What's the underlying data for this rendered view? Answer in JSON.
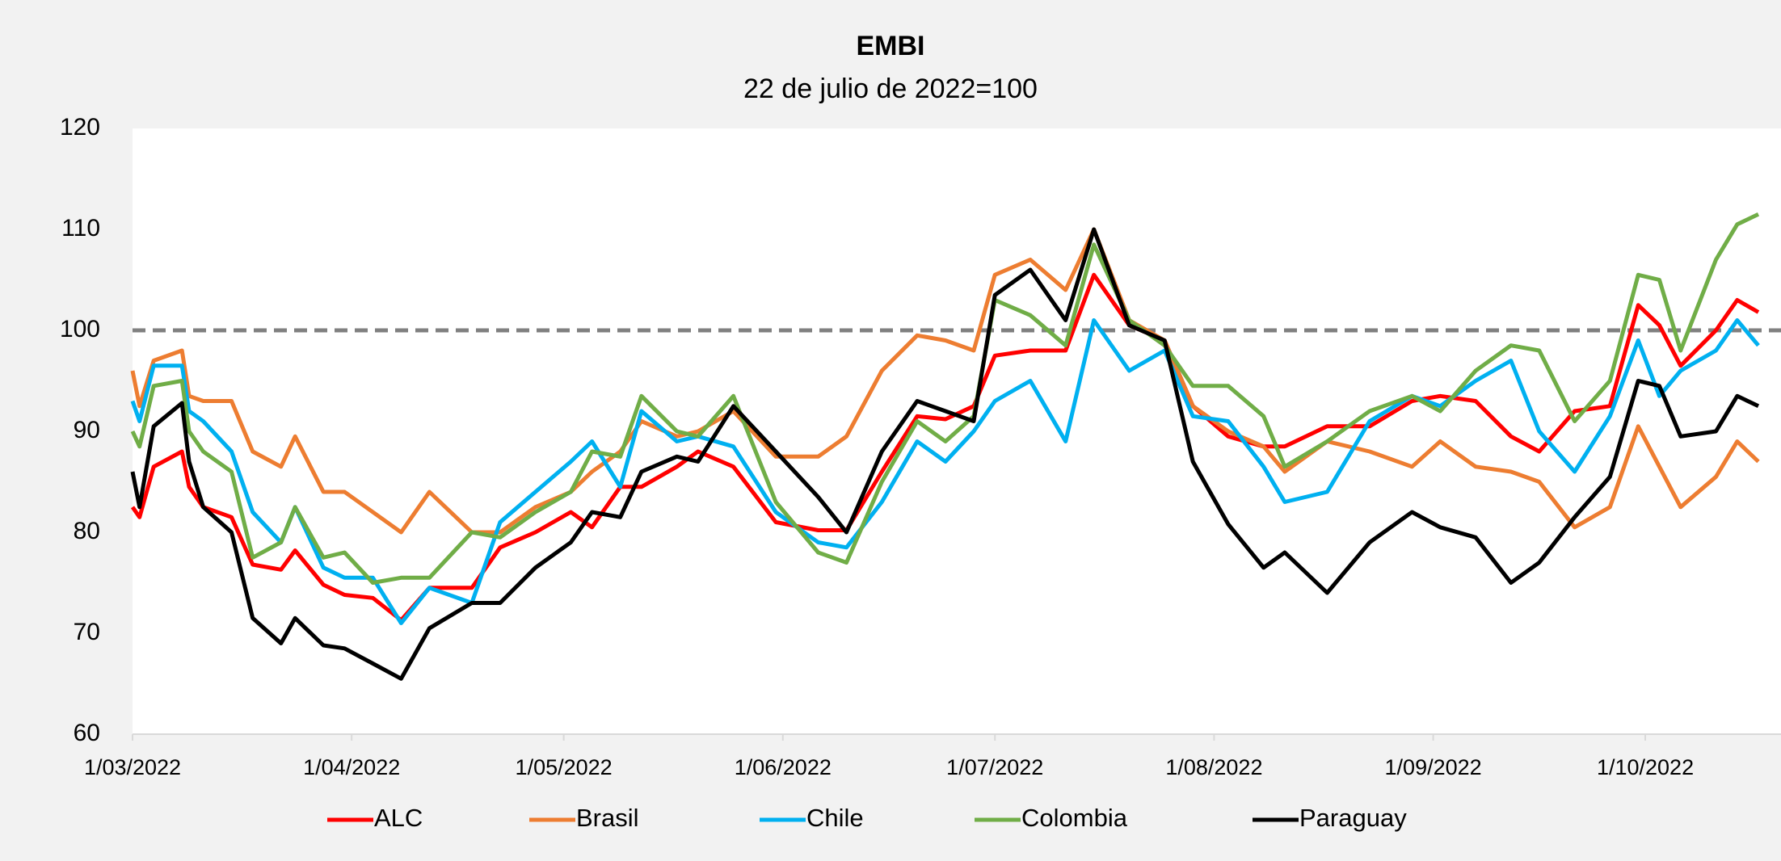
{
  "chart_data": {
    "type": "line",
    "title": "EMBI",
    "subtitle": "22 de julio de 2022=100",
    "x": [
      "2022-03-01",
      "2022-03-02",
      "2022-03-04",
      "2022-03-08",
      "2022-03-09",
      "2022-03-11",
      "2022-03-15",
      "2022-03-18",
      "2022-03-22",
      "2022-03-24",
      "2022-03-28",
      "2022-03-31",
      "2022-04-04",
      "2022-04-08",
      "2022-04-12",
      "2022-04-18",
      "2022-04-22",
      "2022-04-27",
      "2022-05-02",
      "2022-05-05",
      "2022-05-09",
      "2022-05-12",
      "2022-05-17",
      "2022-05-20",
      "2022-05-25",
      "2022-05-31",
      "2022-06-06",
      "2022-06-10",
      "2022-06-15",
      "2022-06-20",
      "2022-06-24",
      "2022-06-28",
      "2022-07-01",
      "2022-07-06",
      "2022-07-11",
      "2022-07-15",
      "2022-07-20",
      "2022-07-25",
      "2022-07-29",
      "2022-08-03",
      "2022-08-08",
      "2022-08-11",
      "2022-08-17",
      "2022-08-23",
      "2022-08-29",
      "2022-09-02",
      "2022-09-07",
      "2022-09-12",
      "2022-09-16",
      "2022-09-21",
      "2022-09-26",
      "2022-09-30",
      "2022-10-03",
      "2022-10-06",
      "2022-10-11",
      "2022-10-14",
      "2022-10-17"
    ],
    "series": [
      {
        "name": "ALC",
        "color": "#ff0000",
        "values": [
          82.5,
          81.5,
          86.5,
          88,
          84.5,
          82.5,
          81.5,
          76.8,
          76.3,
          78.2,
          74.8,
          73.8,
          73.5,
          71.3,
          74.5,
          74.5,
          78.5,
          80,
          82,
          80.5,
          84.5,
          84.5,
          86.5,
          88,
          86.5,
          81,
          80.2,
          80.2,
          86,
          91.5,
          91.2,
          92.5,
          97.5,
          98,
          98,
          105.5,
          100.5,
          99,
          92.5,
          89.5,
          88.5,
          88.5,
          90.5,
          90.5,
          93,
          93.5,
          93,
          89.5,
          88,
          92,
          92.5,
          102.5,
          100.5,
          96.5,
          100,
          103,
          101.8
        ]
      },
      {
        "name": "Brasil",
        "color": "#ed7d31",
        "values": [
          96,
          92.5,
          97,
          98,
          93.5,
          93,
          93,
          88,
          86.5,
          89.5,
          84,
          84,
          82,
          80,
          84,
          80,
          80,
          82.5,
          84,
          86,
          88,
          91,
          89.5,
          90,
          92,
          87.5,
          87.5,
          89.5,
          96,
          99.5,
          99,
          98,
          105.5,
          107,
          104,
          110,
          101,
          99,
          92.5,
          90,
          88.5,
          86,
          89,
          88,
          86.5,
          89,
          86.5,
          86,
          85,
          80.5,
          82.5,
          90.5,
          86.5,
          82.5,
          85.5,
          89,
          87
        ]
      },
      {
        "name": "Chile",
        "color": "#00b0f0",
        "values": [
          93,
          91,
          96.5,
          96.5,
          92,
          91,
          88,
          82,
          79,
          82.5,
          76.5,
          75.5,
          75.5,
          71,
          74.5,
          73,
          81,
          84,
          87,
          89,
          84.5,
          92,
          89,
          89.5,
          88.5,
          82,
          79,
          78.5,
          83,
          89,
          87,
          90,
          93,
          95,
          89,
          101,
          96,
          98,
          91.5,
          91,
          86.5,
          83,
          84,
          91,
          93.5,
          92.5,
          95,
          97,
          90,
          86,
          91.5,
          99,
          93.5,
          96,
          98,
          101,
          98.5
        ]
      },
      {
        "name": "Colombia",
        "color": "#70ad47",
        "values": [
          90,
          88.5,
          94.5,
          95,
          90,
          88,
          86,
          77.5,
          79,
          82.5,
          77.5,
          78,
          75,
          75.5,
          75.5,
          80,
          79.5,
          82,
          84,
          88,
          87.5,
          93.5,
          90,
          89.5,
          93.5,
          83,
          78,
          77,
          85,
          91,
          89,
          91.5,
          103,
          101.5,
          98.5,
          108.5,
          101,
          98.5,
          94.5,
          94.5,
          91.5,
          86.5,
          89,
          92,
          93.5,
          92,
          96,
          98.5,
          98,
          91,
          95,
          105.5,
          105,
          98,
          107,
          110.5,
          111.5
        ]
      },
      {
        "name": "Paraguay",
        "color": "#000000",
        "values": [
          86,
          82.5,
          90.5,
          92.8,
          87,
          82.5,
          80,
          71.5,
          69,
          71.5,
          68.8,
          68.5,
          67,
          65.5,
          70.5,
          73,
          73,
          76.5,
          79,
          82,
          81.5,
          86,
          87.5,
          87,
          92.5,
          88,
          83.5,
          80,
          88,
          93,
          92,
          91,
          103.5,
          106,
          101,
          110,
          100.5,
          99,
          87,
          80.8,
          76.5,
          78,
          74,
          79,
          82,
          80.5,
          79.5,
          75,
          77,
          81.5,
          85.5,
          95,
          94.5,
          89.5,
          90,
          93.5,
          92.5
        ]
      }
    ],
    "reference_line": 100,
    "xlim": [
      "2022-03-01",
      "2022-10-17"
    ],
    "xticks": [
      {
        "value": "2022-03-01",
        "label": "1/03/2022"
      },
      {
        "value": "2022-04-01",
        "label": "1/04/2022"
      },
      {
        "value": "2022-05-01",
        "label": "1/05/2022"
      },
      {
        "value": "2022-06-01",
        "label": "1/06/2022"
      },
      {
        "value": "2022-07-01",
        "label": "1/07/2022"
      },
      {
        "value": "2022-08-01",
        "label": "1/08/2022"
      },
      {
        "value": "2022-09-01",
        "label": "1/09/2022"
      },
      {
        "value": "2022-10-01",
        "label": "1/10/2022"
      }
    ],
    "ylim": [
      60,
      120
    ],
    "yticks": [
      60,
      70,
      80,
      90,
      100,
      110,
      120
    ],
    "grid": false,
    "legend": "bottom"
  }
}
